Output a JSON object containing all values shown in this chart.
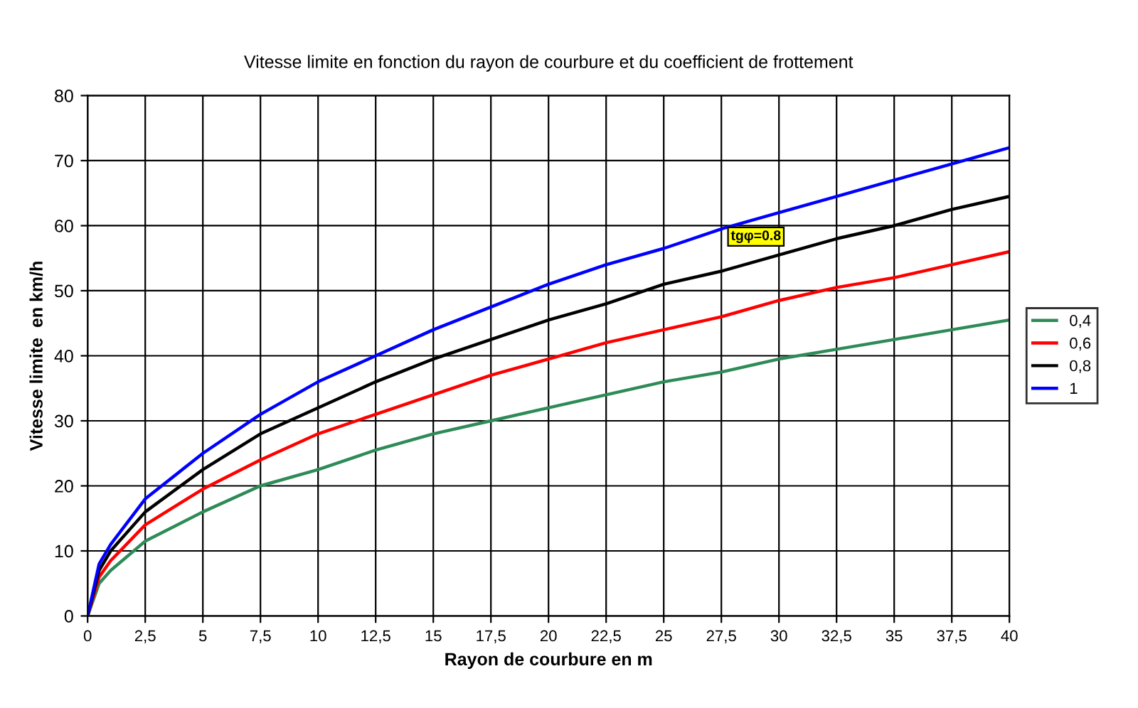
{
  "chart_data": {
    "type": "line",
    "title": "Vitesse limite en fonction du rayon de courbure et du coefficient de frottement",
    "xlabel": "Rayon de courbure en m",
    "ylabel": "Vitesse limite  en km/h",
    "x": [
      0,
      0.5,
      1,
      2.5,
      5,
      7.5,
      10,
      12.5,
      15,
      17.5,
      20,
      22.5,
      25,
      27.5,
      30,
      32.5,
      35,
      37.5,
      40
    ],
    "series": [
      {
        "name": "0,4",
        "color": "#2e8b57",
        "values": [
          0,
          5,
          7,
          11.5,
          16,
          20,
          22.5,
          25.5,
          28,
          30,
          32,
          34,
          36,
          37.5,
          39.5,
          41,
          42.5,
          44,
          45.5
        ]
      },
      {
        "name": "0,6",
        "color": "#ff0000",
        "values": [
          0,
          6,
          8.5,
          14,
          19.5,
          24,
          28,
          31,
          34,
          37,
          39.5,
          42,
          44,
          46,
          48.5,
          50.5,
          52,
          54,
          56
        ]
      },
      {
        "name": "0,8",
        "color": "#000000",
        "values": [
          0,
          7,
          10,
          16,
          22.5,
          28,
          32,
          36,
          39.5,
          42.5,
          45.5,
          48,
          51,
          53,
          55.5,
          58,
          60,
          62.5,
          64.5
        ]
      },
      {
        "name": "1",
        "color": "#0000ff",
        "values": [
          0,
          8,
          11,
          18,
          25,
          31,
          36,
          40,
          44,
          47.5,
          51,
          54,
          56.5,
          59.5,
          62,
          64.5,
          67,
          69.5,
          72
        ]
      }
    ],
    "annotations": [
      "tgφ=0.8"
    ],
    "xlim": [
      0,
      40
    ],
    "xticks": [
      0,
      {
        "value": 2.5,
        "label": "2,5"
      },
      5,
      {
        "value": 7.5,
        "label": "7,5"
      },
      10,
      {
        "value": 12.5,
        "label": "12,5"
      },
      15,
      {
        "value": 17.5,
        "label": "17,5"
      },
      20,
      {
        "value": 22.5,
        "label": "22,5"
      },
      25,
      {
        "value": 27.5,
        "label": "27,5"
      },
      30,
      {
        "value": 32.5,
        "label": "32,5"
      },
      35,
      {
        "value": 37.5,
        "label": "37,5"
      },
      40
    ],
    "ylim": [
      0,
      80
    ],
    "yticks": [
      0,
      10,
      20,
      30,
      40,
      50,
      60,
      70,
      80
    ],
    "grid": true,
    "legend": "right",
    "marker": "none",
    "line_style": "solid"
  }
}
